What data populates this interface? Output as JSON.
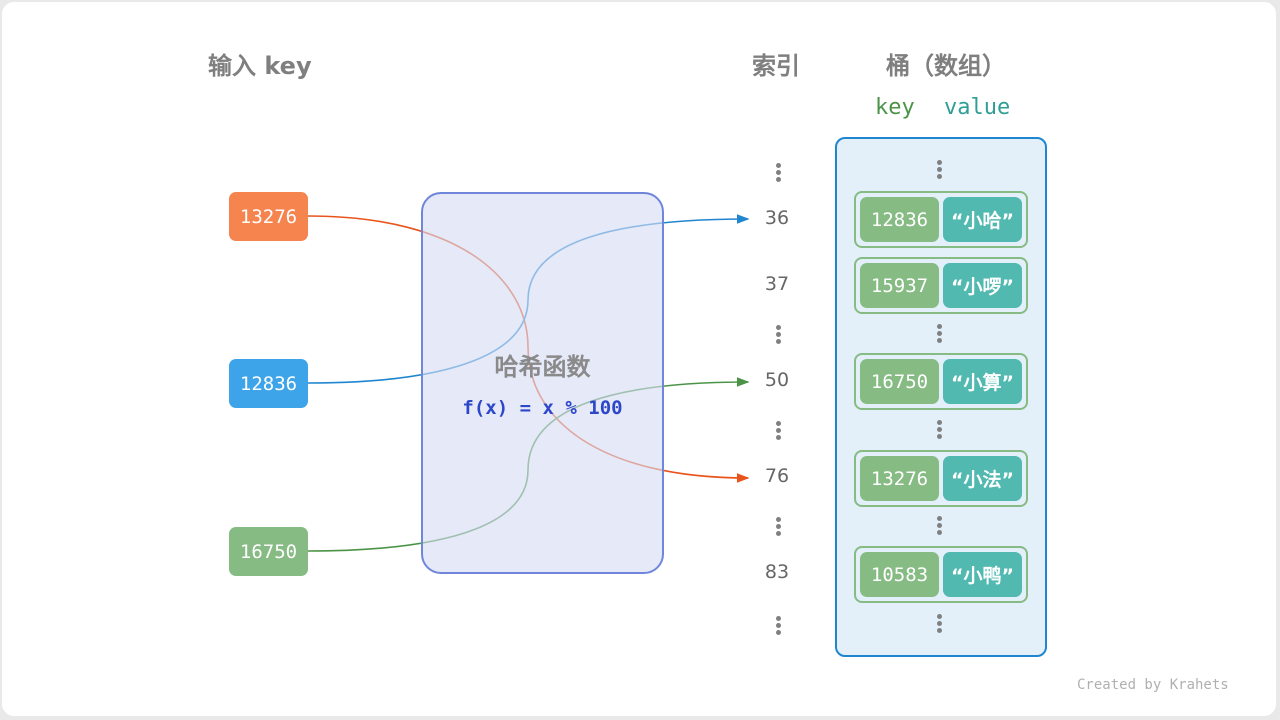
{
  "headers": {
    "input_key": "输入 key",
    "index": "索引",
    "bucket": "桶（数组）",
    "key_label": "key",
    "value_label": "value"
  },
  "inputs": [
    {
      "key": "13276",
      "color": "#f6844f",
      "line_color": "#e8541c"
    },
    {
      "key": "12836",
      "color": "#3ea4ea",
      "line_color": "#1f86cf"
    },
    {
      "key": "16750",
      "color": "#86bb83",
      "line_color": "#4b9447"
    }
  ],
  "hash_function": {
    "title": "哈希函数",
    "formula": "f(x) = x % 100"
  },
  "indices": [
    "36",
    "37",
    "50",
    "76",
    "83"
  ],
  "buckets": [
    {
      "key": "12836",
      "value": "“小哈”"
    },
    {
      "key": "15937",
      "value": "“小啰”"
    },
    {
      "key": "16750",
      "value": "“小算”"
    },
    {
      "key": "13276",
      "value": "“小法”"
    },
    {
      "key": "10583",
      "value": "“小鸭”"
    }
  ],
  "footer": "Created by Krahets"
}
